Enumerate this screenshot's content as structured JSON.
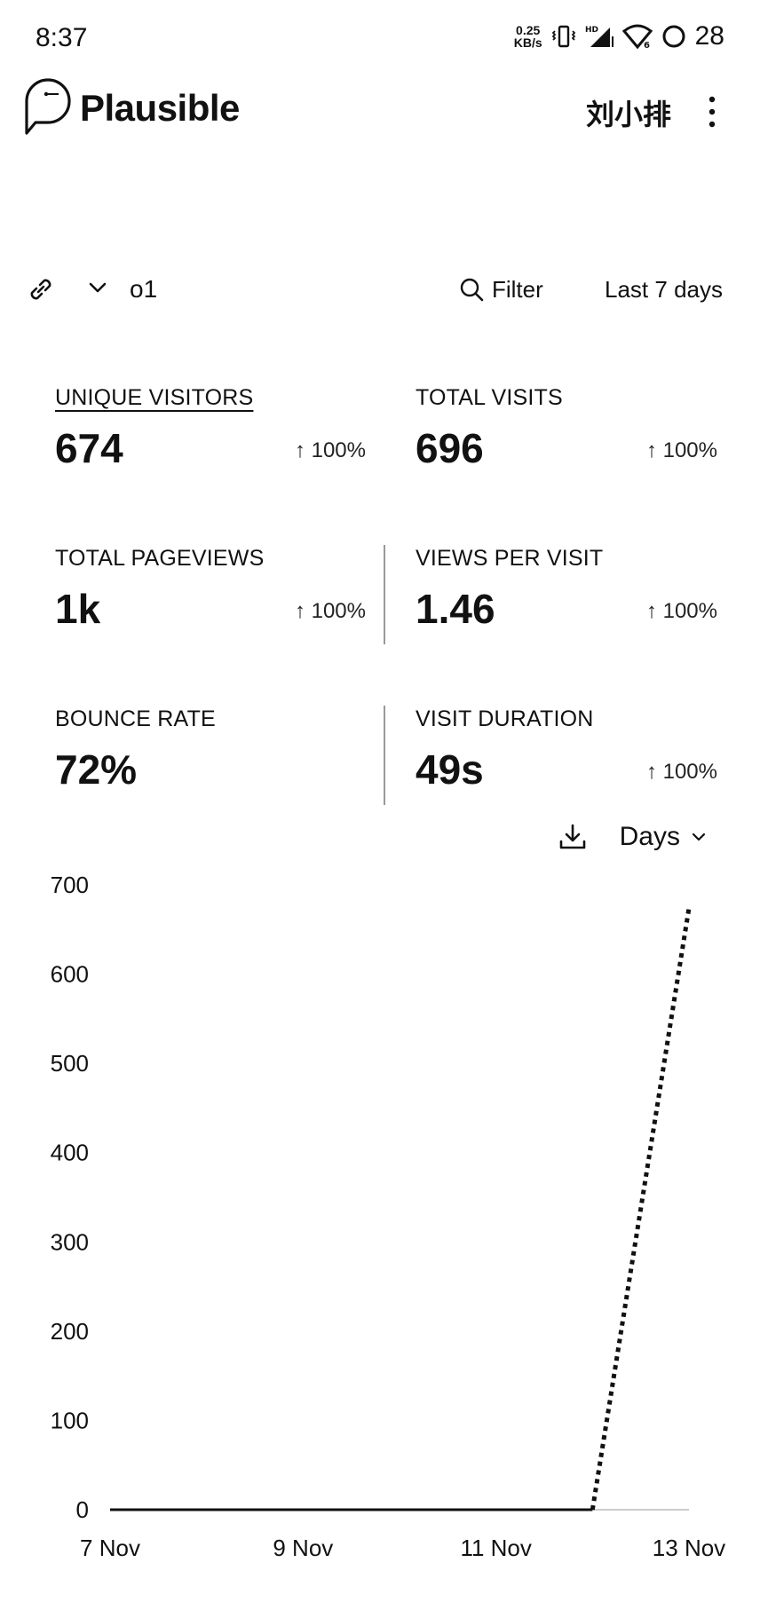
{
  "status_bar": {
    "time": "8:37",
    "net_speed_value": "0.25",
    "net_speed_unit": "KB/s",
    "battery": "28"
  },
  "header": {
    "brand": "Plausible",
    "user": "刘小排",
    "logo_icon": "speech-bubble-logo-icon",
    "menu_icon": "more-vertical-icon"
  },
  "toolbar": {
    "site_label": "o1",
    "filter_label": "Filter",
    "period_label": "Last 7 days"
  },
  "metrics": [
    {
      "label": "UNIQUE VISITORS",
      "value": "674",
      "change": "↑ 100%",
      "active": true
    },
    {
      "label": "TOTAL VISITS",
      "value": "696",
      "change": "↑ 100%"
    },
    {
      "label": "TOTAL PAGEVIEWS",
      "value": "1k",
      "change": "↑ 100%"
    },
    {
      "label": "VIEWS PER VISIT",
      "value": "1.46",
      "change": "↑ 100%"
    },
    {
      "label": "BOUNCE RATE",
      "value": "72%",
      "change": ""
    },
    {
      "label": "VISIT DURATION",
      "value": "49s",
      "change": "↑ 100%"
    }
  ],
  "chart_controls": {
    "interval_label": "Days"
  },
  "colors": {
    "text": "#111111",
    "line": "#111111",
    "divider": "#999999"
  },
  "chart_data": {
    "type": "line",
    "x": [
      "7 Nov",
      "8 Nov",
      "9 Nov",
      "10 Nov",
      "11 Nov",
      "12 Nov",
      "13 Nov"
    ],
    "tick_labels": [
      "7 Nov",
      "9 Nov",
      "11 Nov",
      "13 Nov"
    ],
    "ylim": [
      0,
      700
    ],
    "y_ticks": [
      0,
      100,
      200,
      300,
      400,
      500,
      600,
      700
    ],
    "series": [
      {
        "values": [
          0,
          0,
          0,
          0,
          0,
          0,
          674
        ],
        "style": "solid-then-dotted"
      }
    ],
    "grid": false
  }
}
